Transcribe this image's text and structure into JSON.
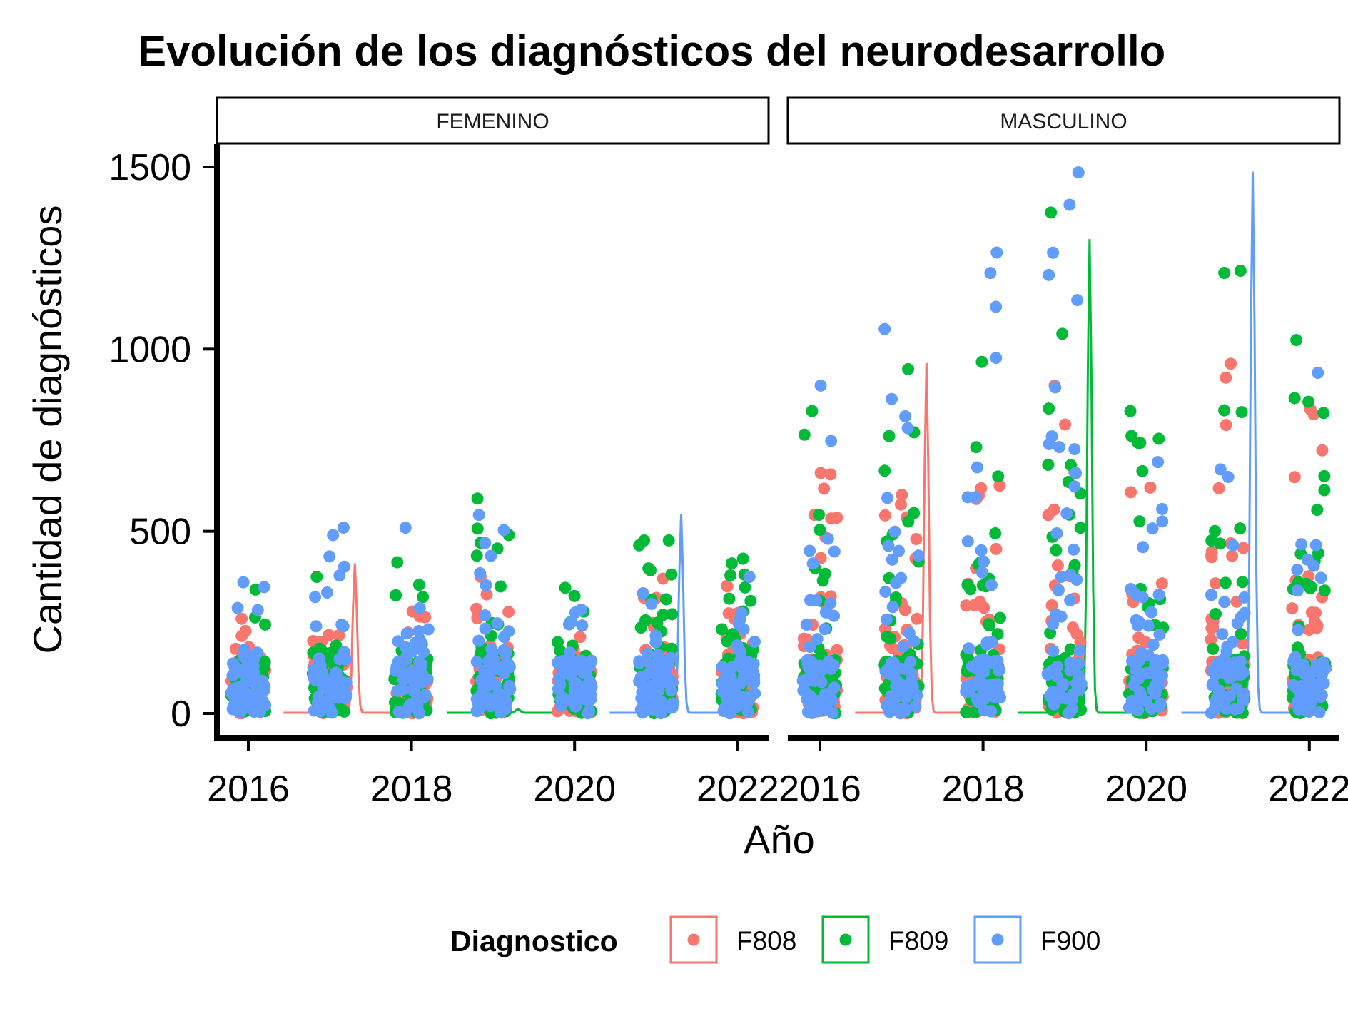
{
  "chart_data": {
    "type": "scatter",
    "title": "Evolución de los diagnósticos del neurodesarrollo",
    "xlabel": "Año",
    "ylabel": "Cantidad de diagnósticos",
    "facets": [
      "FEMENINO",
      "MASCULINO"
    ],
    "x_ticks": [
      "2016",
      "2018",
      "2020",
      "2022"
    ],
    "y_ticks": [
      "0",
      "500",
      "1000",
      "1500"
    ],
    "xlim": [
      2015.7,
      2022.4
    ],
    "ylim": [
      -70,
      1560
    ],
    "grid": false,
    "legend": {
      "title": "Diagnostico",
      "position": "bottom"
    },
    "series": [
      {
        "name": "F808",
        "color": "#F8766D"
      },
      {
        "name": "F809",
        "color": "#00BA38"
      },
      {
        "name": "F900",
        "color": "#619CFF"
      }
    ],
    "max_points": {
      "FEMENINO": {
        "F808": [
          [
            2016,
            260
          ],
          [
            2017,
            215
          ],
          [
            2018,
            280
          ],
          [
            2019,
            375
          ],
          [
            2020,
            210
          ],
          [
            2021,
            370
          ],
          [
            2022,
            350
          ]
        ],
        "F809": [
          [
            2016,
            340
          ],
          [
            2017,
            375
          ],
          [
            2018,
            415
          ],
          [
            2019,
            590
          ],
          [
            2020,
            345
          ],
          [
            2021,
            475
          ],
          [
            2022,
            425
          ]
        ],
        "F900": [
          [
            2016,
            360
          ],
          [
            2017,
            510
          ],
          [
            2018,
            510
          ],
          [
            2019,
            545
          ],
          [
            2020,
            285
          ],
          [
            2021,
            330
          ],
          [
            2022,
            375
          ]
        ]
      },
      "MASCULINO": {
        "F808": [
          [
            2016,
            660
          ],
          [
            2017,
            600
          ],
          [
            2018,
            625
          ],
          [
            2019,
            900
          ],
          [
            2020,
            620
          ],
          [
            2021,
            960
          ],
          [
            2022,
            835
          ]
        ],
        "F809": [
          [
            2016,
            830
          ],
          [
            2017,
            945
          ],
          [
            2018,
            965
          ],
          [
            2019,
            1375
          ],
          [
            2020,
            830
          ],
          [
            2021,
            1215
          ],
          [
            2022,
            1025
          ]
        ],
        "F900": [
          [
            2016,
            900
          ],
          [
            2017,
            1055
          ],
          [
            2018,
            1265
          ],
          [
            2019,
            1485
          ],
          [
            2020,
            690
          ],
          [
            2021,
            670
          ],
          [
            2022,
            935
          ]
        ]
      }
    },
    "density_traces": {
      "FEMENINO": [
        {
          "series": "F808",
          "year": 2017,
          "peak": 410
        },
        {
          "series": "F809",
          "year": 2019,
          "peak": 10
        },
        {
          "series": "F900",
          "year": 2021,
          "peak": 545
        }
      ],
      "MASCULINO": [
        {
          "series": "F808",
          "year": 2017,
          "peak": 960
        },
        {
          "series": "F809",
          "year": 2019,
          "peak": 1300
        },
        {
          "series": "F900",
          "year": 2021,
          "peak": 1485
        }
      ]
    }
  }
}
